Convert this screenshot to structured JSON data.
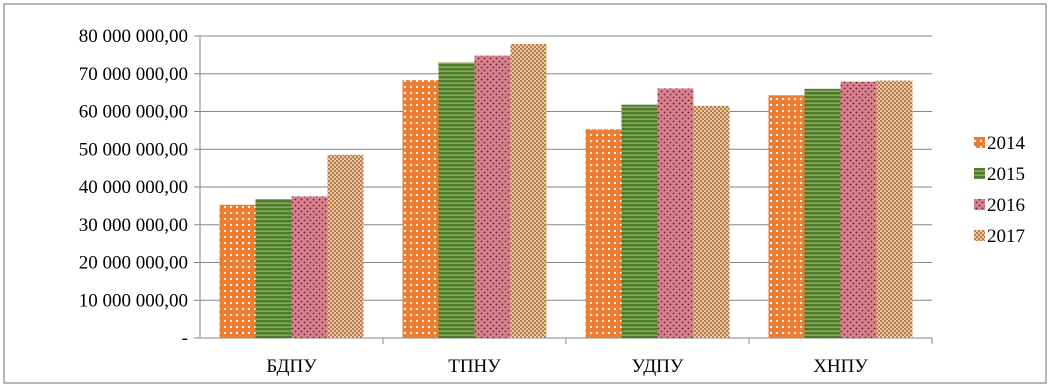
{
  "chart_data": {
    "type": "bar",
    "categories": [
      "БДПУ",
      "ТПНУ",
      "УДПУ",
      "ХНПУ"
    ],
    "series": [
      {
        "name": "2014",
        "values": [
          35300000,
          68300000,
          55300000,
          64300000
        ],
        "color": "#ed7d31"
      },
      {
        "name": "2015",
        "values": [
          36800000,
          73000000,
          61800000,
          66000000
        ],
        "color": "#4e7a2b"
      },
      {
        "name": "2016",
        "values": [
          37500000,
          74800000,
          66100000,
          67900000
        ],
        "color": "#d9828f"
      },
      {
        "name": "2017",
        "values": [
          48500000,
          77900000,
          61500000,
          68200000
        ],
        "color": "#d9a77c"
      }
    ],
    "ylim": [
      0,
      80000000
    ],
    "yticks": [
      {
        "value": 0,
        "label": "-"
      },
      {
        "value": 10000000,
        "label": "10 000 000,00"
      },
      {
        "value": 20000000,
        "label": "20 000 000,00"
      },
      {
        "value": 30000000,
        "label": "30 000 000,00"
      },
      {
        "value": 40000000,
        "label": "40 000 000,00"
      },
      {
        "value": 50000000,
        "label": "50 000 000,00"
      },
      {
        "value": 60000000,
        "label": "60 000 000,00"
      },
      {
        "value": 70000000,
        "label": "70 000 000,00"
      },
      {
        "value": 80000000,
        "label": "80 000 000,00"
      }
    ],
    "grid": true,
    "legend": "right",
    "title": "",
    "xlabel": "",
    "ylabel": ""
  }
}
